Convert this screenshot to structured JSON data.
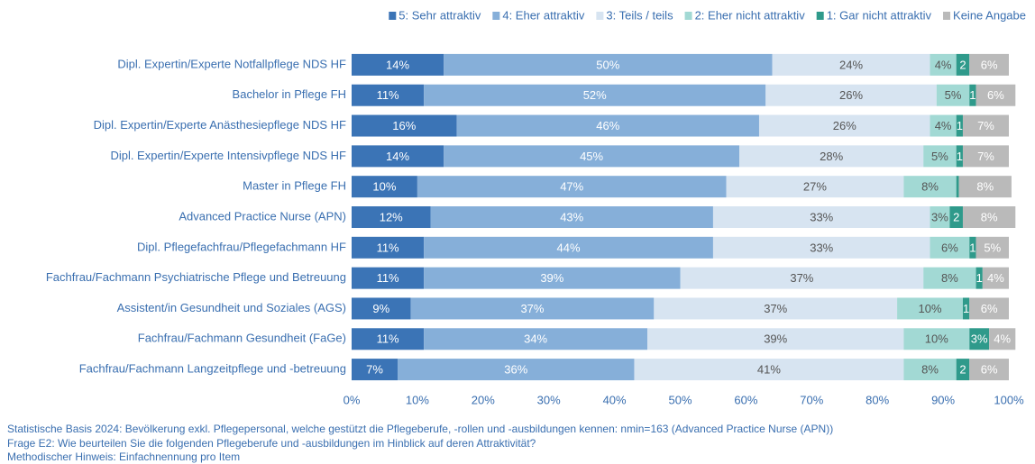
{
  "chart_data": {
    "type": "stacked-barh",
    "categories": [
      "Dipl. Expertin/Experte Notfallpflege NDS HF",
      "Bachelor in Pflege FH",
      "Dipl. Expertin/Experte Anästhesiepflege NDS HF",
      "Dipl. Expertin/Experte Intensivpflege NDS HF",
      "Master in Pflege FH",
      "Advanced Practice Nurse (APN)",
      "Dipl. Pflegefachfrau/Pflegefachmann HF",
      "Fachfrau/Fachmann Psychiatrische Pflege und Betreuung",
      "Assistent/in Gesundheit und Soziales (AGS)",
      "Fachfrau/Fachmann Gesundheit (FaGe)",
      "Fachfrau/Fachmann Langzeitpflege und -betreuung"
    ],
    "series": [
      {
        "name": "5: Sehr attraktiv",
        "color": "#3b74b6",
        "values": [
          14,
          11,
          16,
          14,
          10,
          12,
          11,
          11,
          9,
          11,
          7
        ],
        "value_labels": [
          "14%",
          "11%",
          "16%",
          "14%",
          "10%",
          "12%",
          "11%",
          "11%",
          "9%",
          "11%",
          "7%"
        ]
      },
      {
        "name": "4: Eher attraktiv",
        "color": "#86afd9",
        "values": [
          50,
          52,
          46,
          45,
          47,
          43,
          44,
          39,
          37,
          34,
          36
        ],
        "value_labels": [
          "50%",
          "52%",
          "46%",
          "45%",
          "47%",
          "43%",
          "44%",
          "39%",
          "37%",
          "34%",
          "36%"
        ]
      },
      {
        "name": "3: Teils / teils",
        "color": "#d7e4f1",
        "values": [
          24,
          26,
          26,
          28,
          27,
          33,
          33,
          37,
          37,
          39,
          41
        ],
        "value_labels": [
          "24%",
          "26%",
          "26%",
          "28%",
          "27%",
          "33%",
          "33%",
          "37%",
          "37%",
          "39%",
          "41%"
        ]
      },
      {
        "name": "2: Eher nicht attraktiv",
        "color": "#a2d9d4",
        "values": [
          4,
          5,
          4,
          5,
          8,
          3,
          6,
          8,
          10,
          10,
          8
        ],
        "value_labels": [
          "4%",
          "5%",
          "4%",
          "5%",
          "8%",
          "3%",
          "6%",
          "8%",
          "10%",
          "10%",
          "8%"
        ]
      },
      {
        "name": "1: Gar nicht attraktiv",
        "color": "#2f9a8b",
        "values": [
          2,
          1,
          1,
          1,
          0.4,
          2,
          1,
          1,
          1,
          3,
          2
        ],
        "value_labels": [
          "2",
          "1",
          "1",
          "1",
          null,
          "2",
          "1",
          "1",
          "1",
          "3%",
          "2"
        ]
      },
      {
        "name": "Keine Angabe",
        "color": "#bababa",
        "values": [
          6,
          6,
          7,
          7,
          8,
          8,
          5,
          4,
          6,
          4,
          6
        ],
        "value_labels": [
          "6%",
          "6%",
          "7%",
          "7%",
          "8%",
          "8%",
          "5%",
          "4%",
          "6%",
          "4%",
          "6%"
        ]
      }
    ],
    "xlim": [
      0,
      100
    ],
    "xticks": [
      {
        "value": 0,
        "label": "0%"
      },
      {
        "value": 10,
        "label": "10%"
      },
      {
        "value": 20,
        "label": "20%"
      },
      {
        "value": 30,
        "label": "30%"
      },
      {
        "value": 40,
        "label": "40%"
      },
      {
        "value": 50,
        "label": "50%"
      },
      {
        "value": 60,
        "label": "60%"
      },
      {
        "value": 70,
        "label": "70%"
      },
      {
        "value": 80,
        "label": "80%"
      },
      {
        "value": 90,
        "label": "90%"
      },
      {
        "value": 100,
        "label": "100%"
      }
    ],
    "legend": "top-right",
    "notes": [
      "Statistische Basis 2024: Bevölkerung exkl. Pflegepersonal, welche gestützt die Pflegeberufe, -rollen und -ausbildungen kennen: nmin=163 (Advanced Practice Nurse (APN))",
      "Frage E2: Wie beurteilen Sie die folgenden Pflegeberufe und -ausbildungen im Hinblick auf deren Attraktivität?",
      "Methodischer Hinweis: Einfachnennung pro Item"
    ]
  }
}
